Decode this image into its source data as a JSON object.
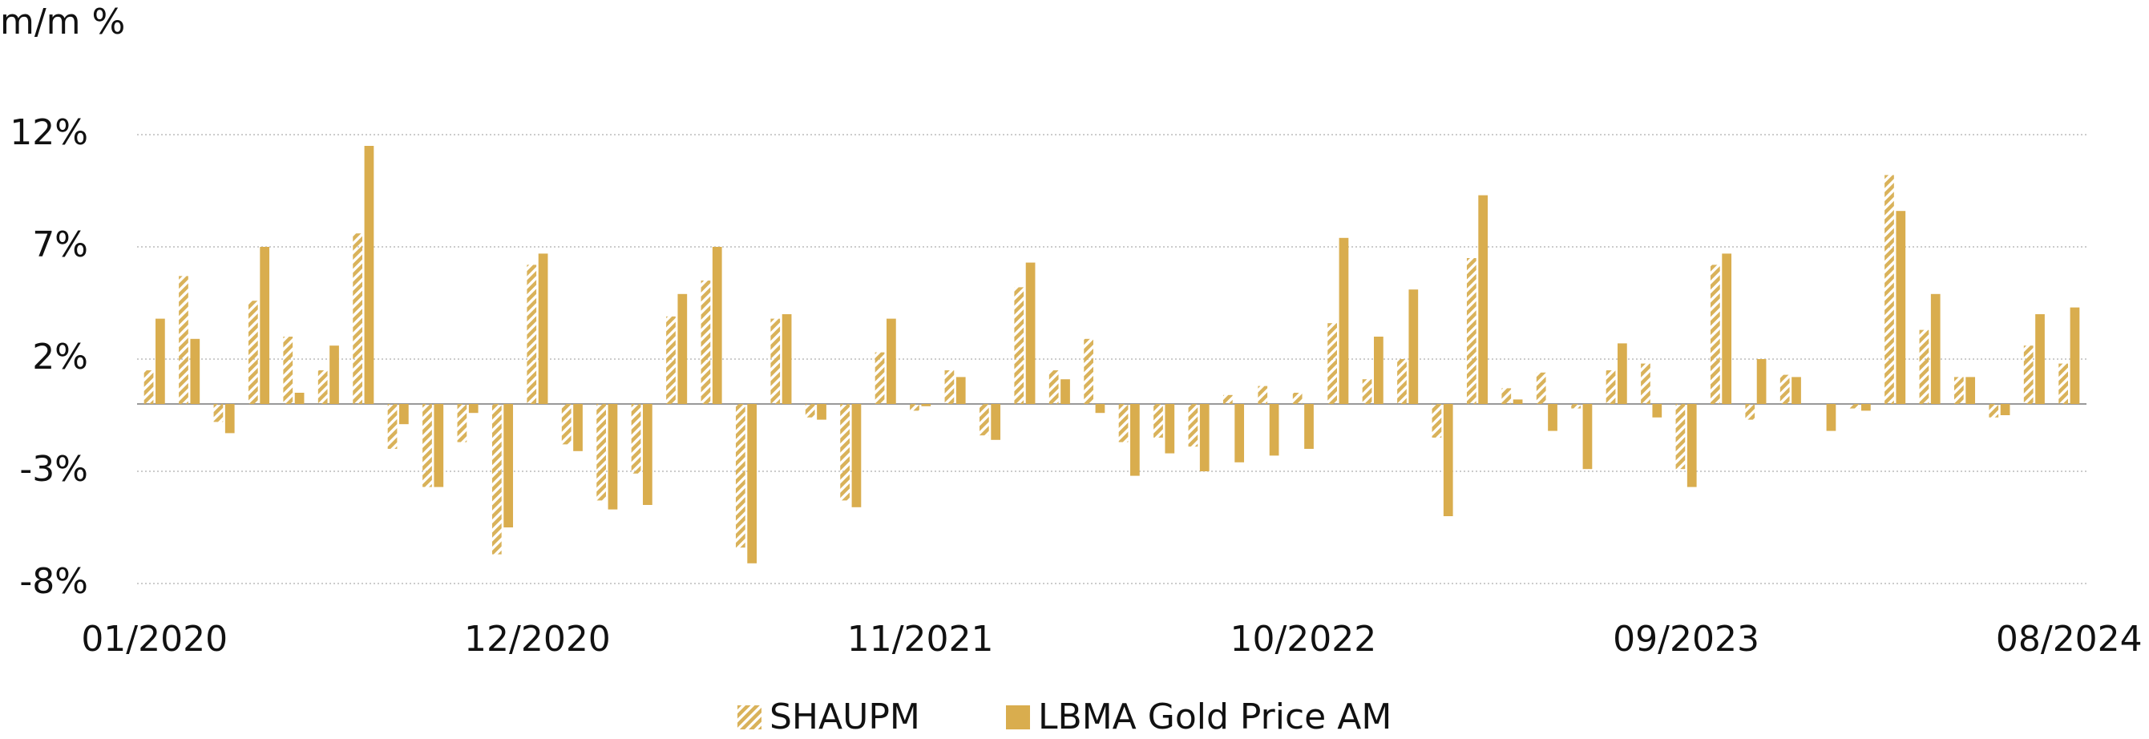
{
  "chart_data": {
    "type": "bar",
    "y_axis_label": "m/m %",
    "categories": [
      "01/2020",
      null,
      null,
      null,
      null,
      null,
      null,
      null,
      null,
      null,
      null,
      "12/2020",
      null,
      null,
      null,
      null,
      null,
      null,
      null,
      null,
      null,
      null,
      "11/2021",
      null,
      null,
      null,
      null,
      null,
      null,
      null,
      null,
      null,
      null,
      "10/2022",
      null,
      null,
      null,
      null,
      null,
      null,
      null,
      null,
      null,
      null,
      "09/2023",
      null,
      null,
      null,
      null,
      null,
      null,
      null,
      null,
      null,
      null,
      "08/2024"
    ],
    "series": [
      {
        "name": "SHAUPM",
        "color": "#d9b25a",
        "pattern": "hatch",
        "values": [
          1.5,
          5.7,
          -0.8,
          4.6,
          3.0,
          1.5,
          7.6,
          -2.0,
          -3.7,
          -1.7,
          -6.7,
          6.2,
          -1.8,
          -4.3,
          -3.1,
          3.9,
          5.5,
          -6.4,
          3.8,
          -0.6,
          -4.3,
          2.3,
          -0.3,
          1.5,
          -1.4,
          5.2,
          1.5,
          2.9,
          -1.7,
          -1.5,
          -1.9,
          0.4,
          0.8,
          0.5,
          3.6,
          1.1,
          2.0,
          -1.5,
          6.5,
          0.7,
          1.4,
          -0.2,
          1.5,
          1.8,
          -2.9,
          6.2,
          -0.7,
          1.3,
          0,
          -0.2,
          10.2,
          3.3,
          1.2,
          -0.6,
          2.6,
          1.8
        ]
      },
      {
        "name": "LBMA Gold Price AM",
        "color": "#d9ad4e",
        "values": [
          3.8,
          2.9,
          -1.3,
          7.0,
          0.5,
          2.6,
          11.5,
          -0.9,
          -3.7,
          -0.4,
          -5.5,
          6.7,
          -2.1,
          -4.7,
          -4.5,
          4.9,
          7.0,
          -7.1,
          4.0,
          -0.7,
          -4.6,
          3.8,
          -0.1,
          1.2,
          -1.6,
          6.3,
          1.1,
          -0.4,
          -3.2,
          -2.2,
          -3.0,
          -2.6,
          -2.3,
          -2.0,
          7.4,
          3.0,
          5.1,
          -5.0,
          9.3,
          0.2,
          -1.2,
          -2.9,
          2.7,
          -0.6,
          -3.7,
          6.7,
          2.0,
          1.2,
          -1.2,
          -0.3,
          8.6,
          4.9,
          1.2,
          -0.5,
          4.0,
          4.3
        ]
      }
    ],
    "ylim": [
      -8,
      12
    ],
    "yticks": [
      {
        "value": -8,
        "label": "-8%"
      },
      {
        "value": -3,
        "label": "-3%"
      },
      {
        "value": 2,
        "label": "2%"
      },
      {
        "value": 7,
        "label": "7%"
      },
      {
        "value": 12,
        "label": "12%"
      }
    ],
    "grid": true,
    "legend": "bottom"
  }
}
